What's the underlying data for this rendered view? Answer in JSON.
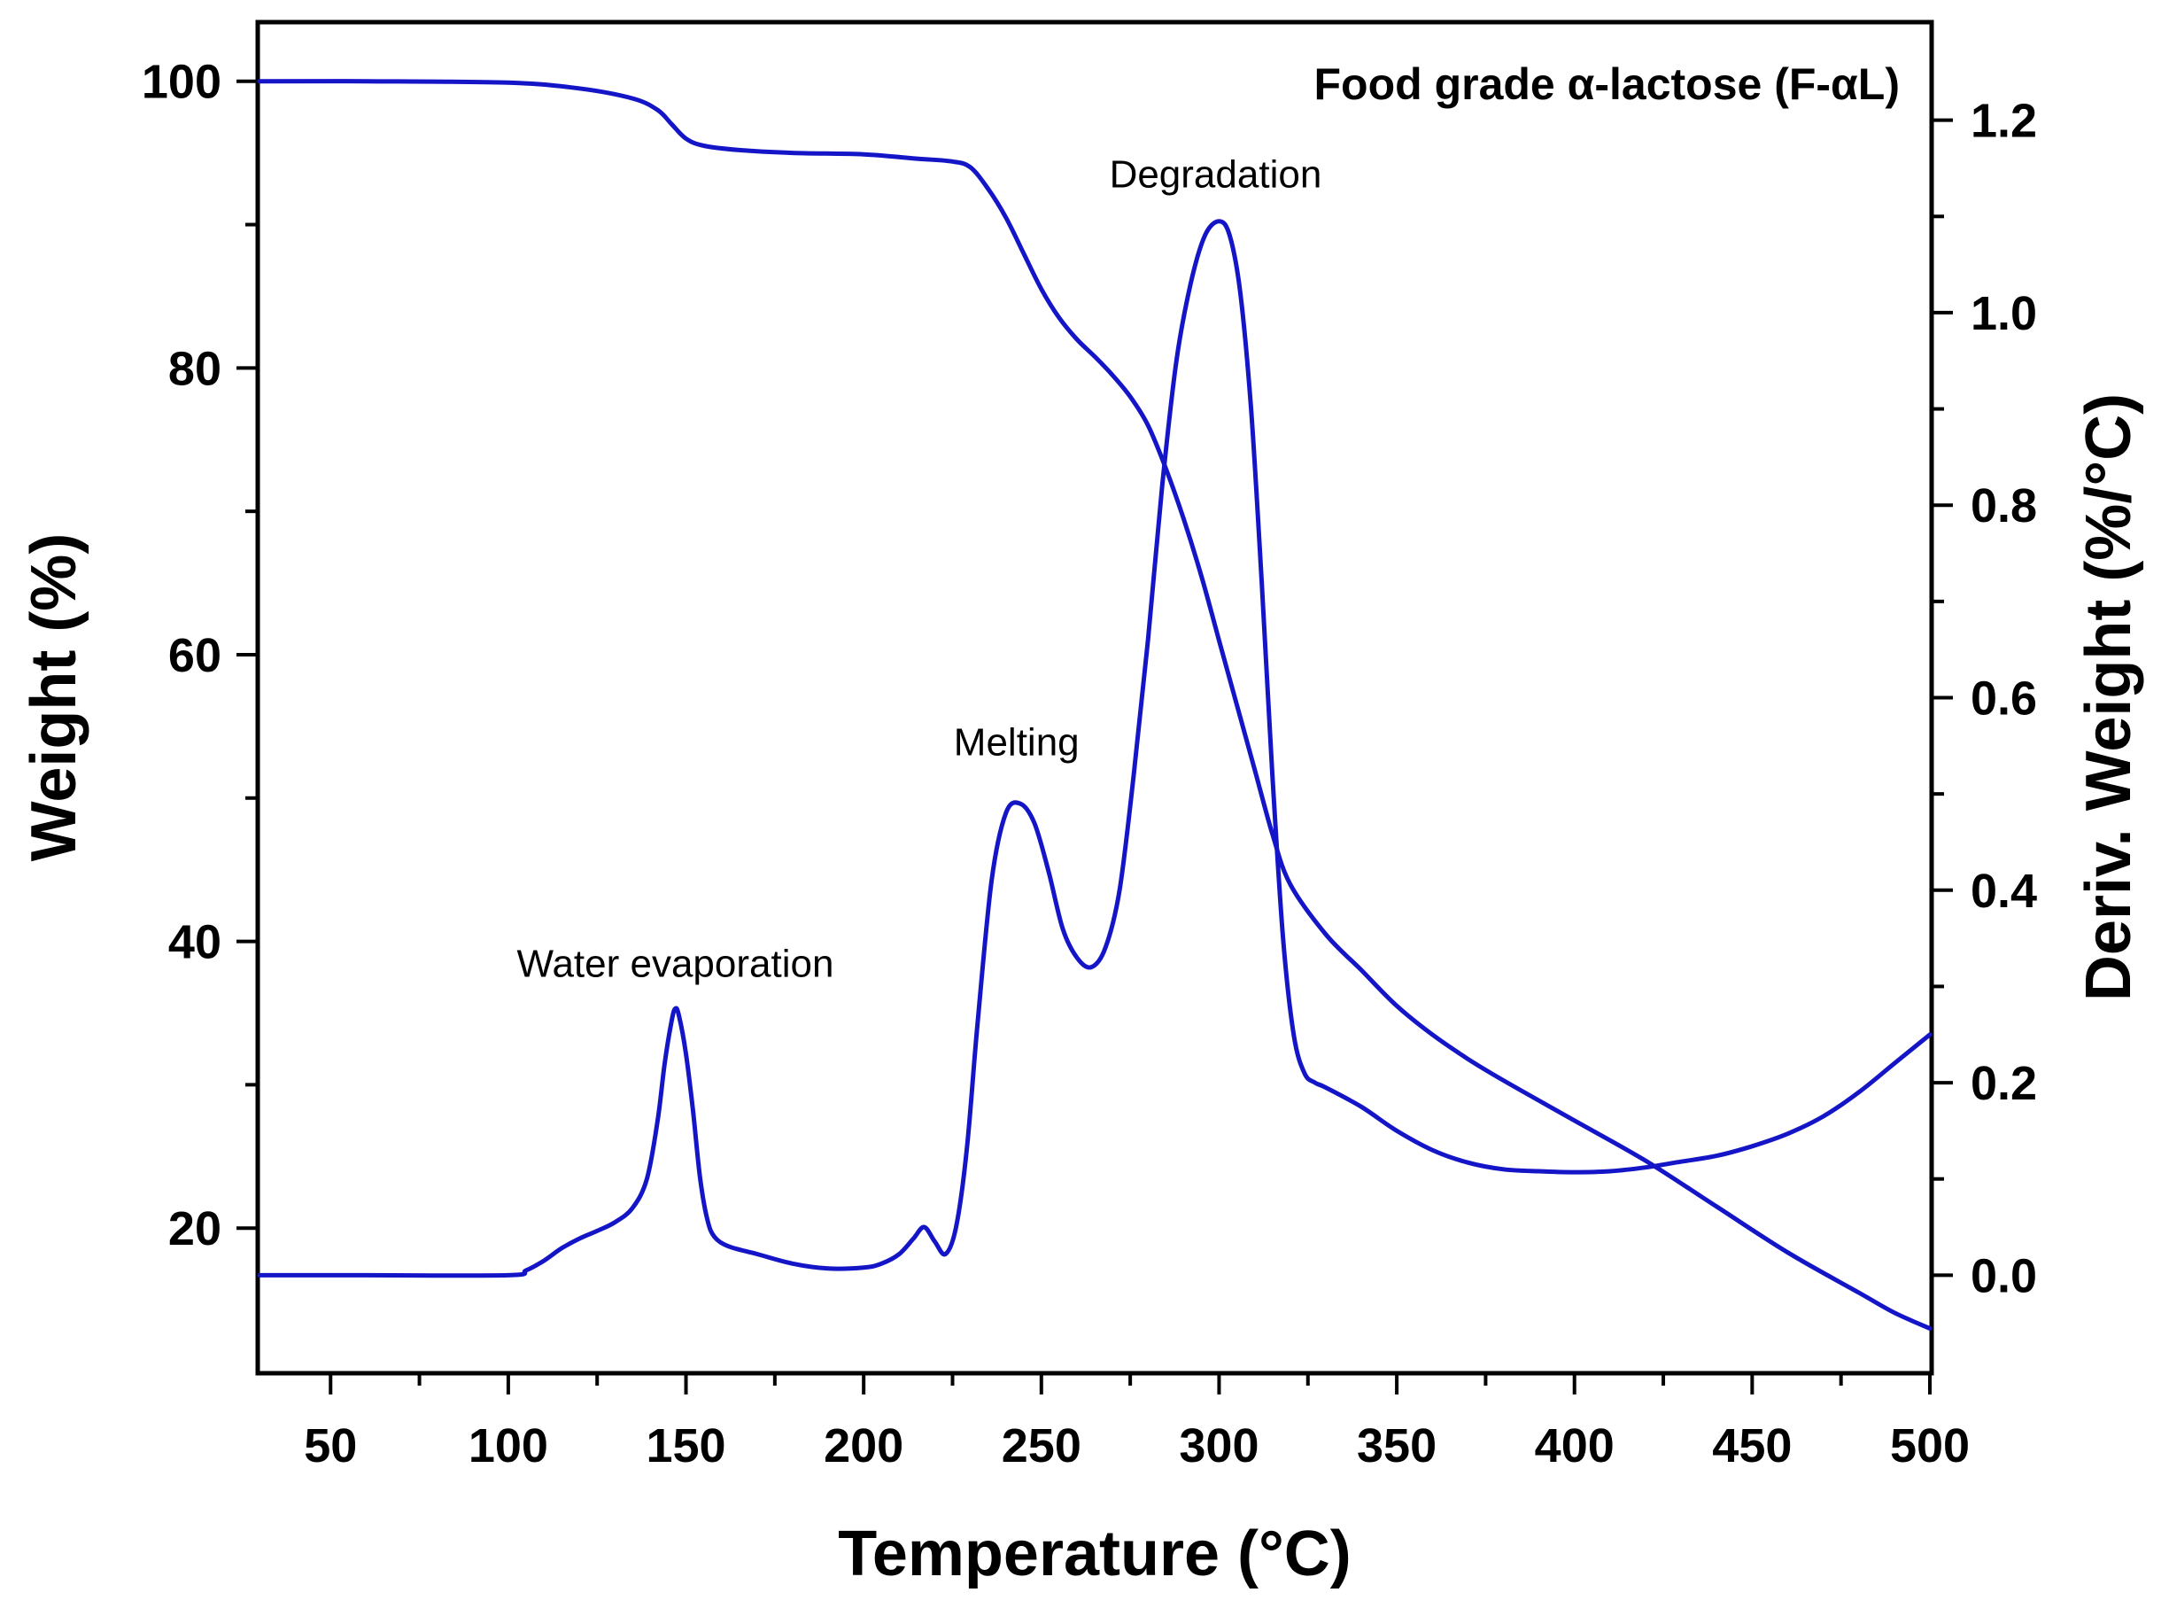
{
  "chart_data": {
    "type": "line",
    "title": "Food grade α-lactose (F-αL)",
    "xlabel": "Temperature (°C)",
    "ylabel": "Weight (%)",
    "y2label": "Deriv. Weight (%/°C)",
    "xlim": [
      30,
      500
    ],
    "ylim": [
      10,
      104
    ],
    "y2lim": [
      -0.1,
      1.3
    ],
    "grid": false,
    "x_ticks": [
      50,
      100,
      150,
      200,
      250,
      300,
      350,
      400,
      450,
      500
    ],
    "x_tick_labels": [
      "50",
      "100",
      "150",
      "200",
      "250",
      "300",
      "350",
      "400",
      "450",
      "500"
    ],
    "y_ticks": [
      20,
      40,
      60,
      80,
      100
    ],
    "y_tick_labels": [
      "20",
      "40",
      "60",
      "80",
      "100"
    ],
    "y2_ticks": [
      0.0,
      0.2,
      0.4,
      0.6,
      0.8,
      1.0,
      1.2
    ],
    "y2_tick_labels": [
      "0.0",
      "0.2",
      "0.4",
      "0.6",
      "0.8",
      "1.0",
      "1.2"
    ],
    "line_color": "#1515C8",
    "series": [
      {
        "name": "Weight",
        "axis": "left",
        "x": [
          30,
          60,
          100,
          120,
          135,
          142,
          146,
          150,
          155,
          165,
          180,
          200,
          215,
          225,
          230,
          235,
          240,
          245,
          250,
          255,
          260,
          265,
          270,
          275,
          280,
          285,
          290,
          295,
          300,
          305,
          310,
          315,
          320,
          330,
          340,
          350,
          360,
          370,
          380,
          400,
          420,
          440,
          460,
          480,
          490,
          500
        ],
        "y": [
          100,
          100,
          99.9,
          99.5,
          98.8,
          98.0,
          97.0,
          96.0,
          95.5,
          95.2,
          95.0,
          94.9,
          94.6,
          94.4,
          94.0,
          92.5,
          90.5,
          88.0,
          85.5,
          83.5,
          82.0,
          80.8,
          79.5,
          78.0,
          76.0,
          73.0,
          69.5,
          65.5,
          61.0,
          56.5,
          52.0,
          47.5,
          44.0,
          40.5,
          38.0,
          35.5,
          33.5,
          31.8,
          30.3,
          27.5,
          24.7,
          21.5,
          18.3,
          15.5,
          14.1,
          13.0
        ]
      },
      {
        "name": "Deriv. Weight",
        "axis": "right",
        "x": [
          30,
          60,
          100,
          105,
          110,
          115,
          120,
          125,
          130,
          135,
          139,
          142,
          144,
          146,
          147,
          148,
          150,
          152,
          154,
          156,
          158,
          162,
          170,
          180,
          190,
          200,
          205,
          210,
          214,
          217,
          220,
          223,
          226,
          229,
          232,
          236,
          240,
          244,
          248,
          252,
          256,
          260,
          264,
          268,
          272,
          276,
          280,
          284,
          288,
          292,
          296,
          300,
          303,
          306,
          309,
          312,
          315,
          318,
          321,
          324,
          327,
          330,
          340,
          350,
          360,
          370,
          380,
          390,
          400,
          410,
          420,
          430,
          440,
          450,
          460,
          470,
          480,
          490,
          500
        ],
        "y": [
          0.0,
          0.0,
          0.0,
          0.005,
          0.015,
          0.028,
          0.038,
          0.046,
          0.055,
          0.07,
          0.1,
          0.16,
          0.22,
          0.265,
          0.277,
          0.27,
          0.23,
          0.17,
          0.1,
          0.058,
          0.04,
          0.03,
          0.022,
          0.012,
          0.007,
          0.008,
          0.012,
          0.022,
          0.038,
          0.05,
          0.035,
          0.022,
          0.05,
          0.13,
          0.26,
          0.41,
          0.48,
          0.49,
          0.47,
          0.42,
          0.36,
          0.33,
          0.32,
          0.34,
          0.4,
          0.52,
          0.66,
          0.82,
          0.95,
          1.03,
          1.08,
          1.095,
          1.08,
          1.02,
          0.9,
          0.72,
          0.52,
          0.35,
          0.25,
          0.21,
          0.2,
          0.195,
          0.175,
          0.15,
          0.13,
          0.117,
          0.11,
          0.108,
          0.107,
          0.108,
          0.112,
          0.118,
          0.124,
          0.134,
          0.147,
          0.165,
          0.19,
          0.22,
          0.25
        ]
      }
    ],
    "annotations": [
      {
        "text": "Water evaporation",
        "x": 147,
        "y2": 0.31
      },
      {
        "text": "Melting",
        "x": 243,
        "y2": 0.54
      },
      {
        "text": "Degradation",
        "x": 299,
        "y2": 1.13
      }
    ]
  }
}
